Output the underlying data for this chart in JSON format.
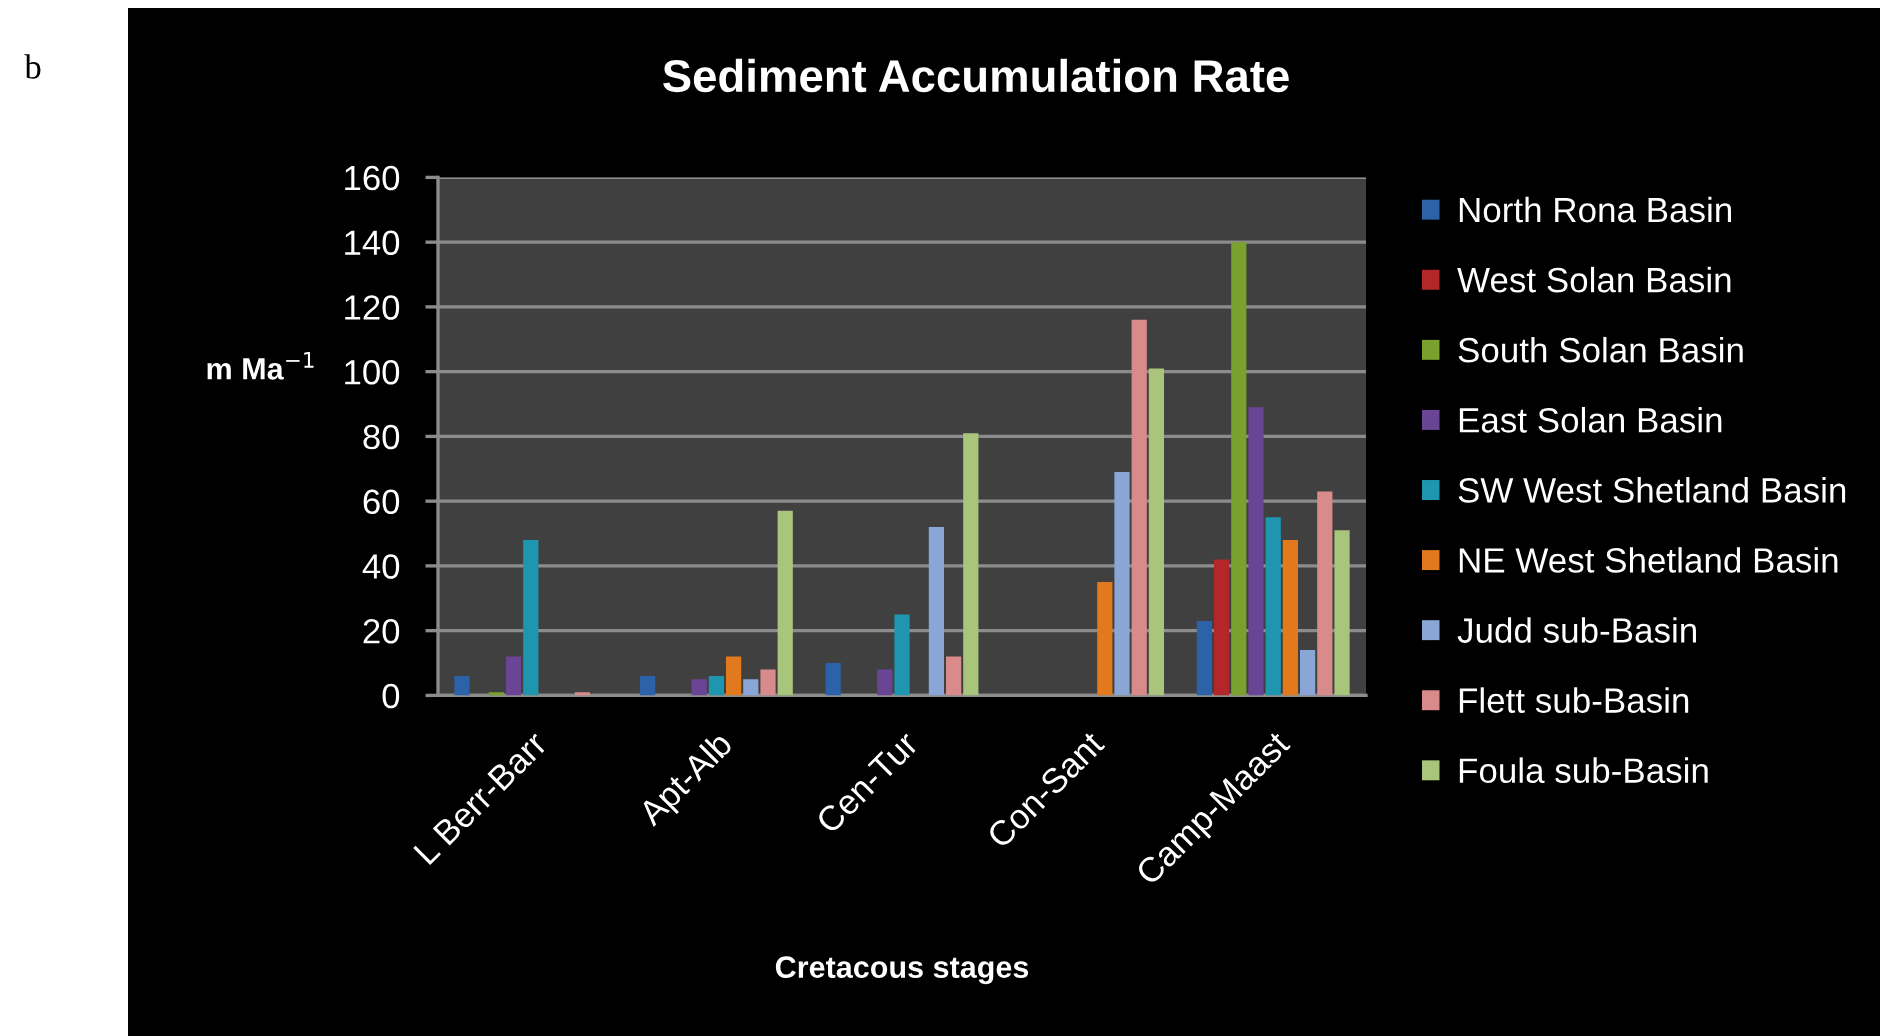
{
  "chart_data": {
    "type": "bar",
    "title": "Sediment Accumulation Rate",
    "xlabel": "Cretacous stages",
    "ylabel": "m Ma$^{−1}$",
    "annotations": [
      "b"
    ],
    "categories": [
      "L Berr-Barr",
      "Apt-Alb",
      "Cen-Tur",
      "Con-Sant",
      "Camp-Maast"
    ],
    "series": [
      {
        "name": "North Rona Basin",
        "color": "#2b62a8",
        "values": [
          6,
          6,
          10,
          null,
          23
        ]
      },
      {
        "name": "West Solan Basin",
        "color": "#b3272a",
        "values": [
          null,
          null,
          null,
          null,
          42
        ]
      },
      {
        "name": "South Solan Basin",
        "color": "#7aa02e",
        "values": [
          1,
          null,
          null,
          null,
          140
        ]
      },
      {
        "name": "East Solan Basin",
        "color": "#6b4595",
        "values": [
          12,
          5,
          8,
          null,
          89
        ]
      },
      {
        "name": "SW West Shetland Basin",
        "color": "#1e96b0",
        "values": [
          48,
          6,
          25,
          null,
          55
        ]
      },
      {
        "name": "NE West Shetland Basin",
        "color": "#e2791c",
        "values": [
          null,
          12,
          null,
          35,
          48
        ]
      },
      {
        "name": "Judd sub-Basin",
        "color": "#8aa6d6",
        "values": [
          null,
          5,
          52,
          69,
          14
        ]
      },
      {
        "name": "Flett sub-Basin",
        "color": "#d98a8a",
        "values": [
          1,
          8,
          12,
          116,
          63
        ]
      },
      {
        "name": "Foula sub-Basin",
        "color": "#a9c57c",
        "values": [
          null,
          57,
          81,
          101,
          51
        ]
      }
    ],
    "ylim": [
      0,
      160
    ],
    "yticks": [
      0,
      20,
      40,
      60,
      80,
      100,
      120,
      140,
      160
    ],
    "grid": "y",
    "legend": "right"
  }
}
